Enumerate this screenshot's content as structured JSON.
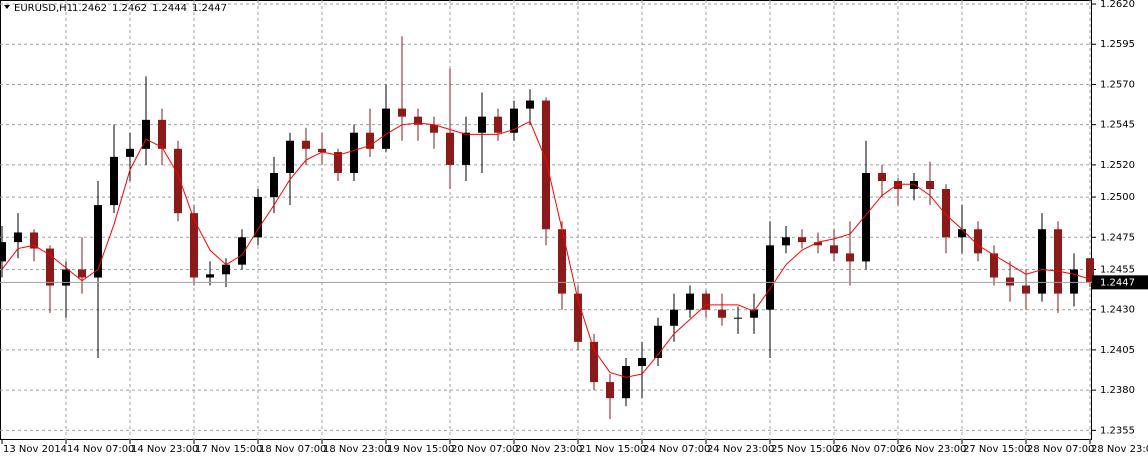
{
  "chart_data": {
    "type": "candlestick",
    "symbol": "EURUSD,H1",
    "categories": [
      "13 Nov 2014",
      null,
      null,
      null,
      "14 Nov 07:00",
      null,
      null,
      null,
      "14 Nov 23:00",
      null,
      null,
      null,
      "17 Nov 15:00",
      null,
      null,
      null,
      "18 Nov 07:00",
      null,
      null,
      null,
      "18 Nov 23:00",
      null,
      null,
      null,
      "19 Nov 15:00",
      null,
      null,
      null,
      "20 Nov 07:00",
      null,
      null,
      null,
      "20 Nov 23:00",
      null,
      null,
      null,
      "21 Nov 15:00",
      null,
      null,
      null,
      "24 Nov 07:00",
      null,
      null,
      null,
      "24 Nov 23:00",
      null,
      null,
      null,
      "25 Nov 15:00",
      null,
      null,
      null,
      "26 Nov 07:00",
      null,
      null,
      null,
      "26 Nov 23:00",
      null,
      null,
      null,
      "27 Nov 15:00",
      null,
      null,
      null,
      "28 Nov 07:00",
      null,
      null,
      null,
      "28 Nov 23:00"
    ],
    "series": [
      {
        "up_color": "#000000",
        "down_color": "#8b1a1a",
        "open": [
          1.246,
          1.2472,
          1.2478,
          1.2468,
          1.2445,
          1.2455,
          1.245,
          1.2495,
          1.2525,
          1.253,
          1.2548,
          1.253,
          1.249,
          1.245,
          1.2452,
          1.2458,
          1.2475,
          1.25,
          1.2515,
          1.2535,
          1.253,
          1.2528,
          1.2515,
          1.254,
          1.253,
          1.2555,
          1.255,
          1.2545,
          1.254,
          1.252,
          1.254,
          1.255,
          1.254,
          1.2555,
          1.256,
          1.248,
          1.244,
          1.241,
          1.2385,
          1.2375,
          1.2395,
          1.24,
          1.242,
          1.243,
          1.244,
          1.243,
          1.2425,
          1.2425,
          1.243,
          1.247,
          1.2475,
          1.2472,
          1.247,
          1.2465,
          1.246,
          1.2515,
          1.251,
          1.2505,
          1.251,
          1.2505,
          1.2475,
          1.248,
          1.2465,
          1.245,
          1.2445,
          1.244,
          1.248,
          1.244,
          1.2462
        ],
        "high": [
          1.2482,
          1.249,
          1.248,
          1.247,
          1.246,
          1.2475,
          1.251,
          1.2545,
          1.254,
          1.2575,
          1.2555,
          1.2535,
          1.2495,
          1.246,
          1.2462,
          1.248,
          1.2505,
          1.2525,
          1.254,
          1.2543,
          1.254,
          1.253,
          1.2545,
          1.2555,
          1.257,
          1.26,
          1.2555,
          1.255,
          1.258,
          1.255,
          1.2565,
          1.2555,
          1.256,
          1.2567,
          1.2562,
          1.2485,
          1.2445,
          1.2415,
          1.239,
          1.24,
          1.241,
          1.2425,
          1.244,
          1.2445,
          1.2442,
          1.244,
          1.2432,
          1.244,
          1.2485,
          1.2482,
          1.248,
          1.2478,
          1.248,
          1.2485,
          1.2535,
          1.252,
          1.2512,
          1.2515,
          1.2522,
          1.2508,
          1.2495,
          1.2485,
          1.247,
          1.246,
          1.2455,
          1.249,
          1.2485,
          1.2465,
          1.2462
        ],
        "low": [
          1.245,
          1.2462,
          1.246,
          1.2428,
          1.2425,
          1.244,
          1.24,
          1.249,
          1.251,
          1.252,
          1.252,
          1.2485,
          1.2445,
          1.2445,
          1.2444,
          1.2455,
          1.247,
          1.249,
          1.2495,
          1.252,
          1.252,
          1.251,
          1.251,
          1.2525,
          1.2528,
          1.2535,
          1.2535,
          1.253,
          1.2505,
          1.251,
          1.2515,
          1.2535,
          1.2535,
          1.2545,
          1.247,
          1.243,
          1.2405,
          1.238,
          1.2362,
          1.237,
          1.2375,
          1.2395,
          1.241,
          1.2425,
          1.2425,
          1.242,
          1.2415,
          1.2415,
          1.24,
          1.2465,
          1.2468,
          1.2465,
          1.246,
          1.2445,
          1.2455,
          1.25,
          1.2495,
          1.2498,
          1.2495,
          1.2465,
          1.2465,
          1.246,
          1.2445,
          1.2435,
          1.243,
          1.2435,
          1.2428,
          1.2432,
          1.2444
        ],
        "close": [
          1.2472,
          1.2478,
          1.2468,
          1.2445,
          1.2455,
          1.245,
          1.2495,
          1.2525,
          1.253,
          1.2548,
          1.253,
          1.249,
          1.245,
          1.2452,
          1.2458,
          1.2475,
          1.25,
          1.2515,
          1.2535,
          1.253,
          1.2528,
          1.2515,
          1.254,
          1.253,
          1.2555,
          1.255,
          1.2545,
          1.254,
          1.252,
          1.254,
          1.255,
          1.254,
          1.2555,
          1.256,
          1.248,
          1.244,
          1.241,
          1.2385,
          1.2375,
          1.2395,
          1.24,
          1.242,
          1.243,
          1.244,
          1.243,
          1.2425,
          1.2425,
          1.243,
          1.247,
          1.2475,
          1.2472,
          1.247,
          1.2465,
          1.246,
          1.2515,
          1.251,
          1.2505,
          1.251,
          1.2505,
          1.2475,
          1.248,
          1.2465,
          1.245,
          1.2445,
          1.244,
          1.248,
          1.244,
          1.2455,
          1.2447
        ]
      },
      {
        "color": "#ff0000",
        "values": [
          1.2455,
          1.2468,
          1.247,
          1.2464,
          1.2456,
          1.2448,
          1.2455,
          1.2483,
          1.2517,
          1.2536,
          1.2531,
          1.2514,
          1.2486,
          1.2467,
          1.2458,
          1.2464,
          1.248,
          1.2495,
          1.2511,
          1.2523,
          1.2528,
          1.2526,
          1.2529,
          1.2532,
          1.2539,
          1.2545,
          1.2546,
          1.2545,
          1.2542,
          1.2539,
          1.2539,
          1.2539,
          1.2542,
          1.2547,
          1.2523,
          1.248,
          1.2436,
          1.2405,
          1.2391,
          1.2388,
          1.239,
          1.2402,
          1.2415,
          1.2424,
          1.2433,
          1.2433,
          1.2433,
          1.2429,
          1.2443,
          1.2458,
          1.2467,
          1.2472,
          1.2474,
          1.2477,
          1.2489,
          1.2501,
          1.2508,
          1.2508,
          1.2501,
          1.2489,
          1.248,
          1.247,
          1.2464,
          1.2458,
          1.2452,
          1.2455,
          1.2454,
          1.2452,
          1.2449
        ]
      }
    ],
    "ylim": [
      1.2349,
      1.26225
    ],
    "yticks": [
      {
        "value": 1.262,
        "label": "1.2620"
      },
      1.2595,
      {
        "value": 1.257,
        "label": "1.2570"
      },
      1.2545,
      {
        "value": 1.252,
        "label": "1.2520"
      },
      {
        "value": 1.25,
        "label": "1.2500"
      },
      1.2475,
      1.2455,
      {
        "value": 1.243,
        "label": "1.2430"
      },
      1.2405,
      {
        "value": 1.238,
        "label": "1.2380"
      },
      1.2355
    ],
    "grid": true
  }
}
